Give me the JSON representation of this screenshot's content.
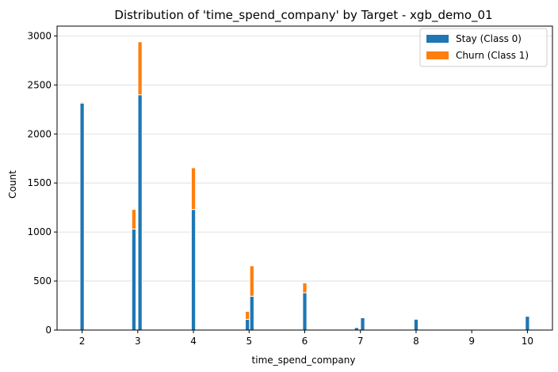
{
  "chart_data": {
    "type": "bar",
    "title": "Distribution of 'time_spend_company' by Target - xgb_demo_01",
    "xlabel": "time_spend_company",
    "ylabel": "Count",
    "xlim": [
      1.55,
      10.45
    ],
    "ylim": [
      0,
      3100
    ],
    "xticks": [
      2,
      3,
      4,
      5,
      6,
      7,
      8,
      9,
      10
    ],
    "yticks": [
      0,
      500,
      1000,
      1500,
      2000,
      2500,
      3000
    ],
    "grid": "horizontal",
    "legend_position": "top-right",
    "bar_width": 0.075,
    "colors": {
      "stay": "#1f77b4",
      "churn": "#ff7f0e",
      "edge": "#ffffff"
    },
    "series": [
      {
        "name": "Stay (Class 0)",
        "key": "stay"
      },
      {
        "name": "Churn (Class 1)",
        "key": "churn"
      }
    ],
    "bars": [
      {
        "x": 2.0,
        "stay": 2315,
        "churn": 10
      },
      {
        "x": 2.93,
        "stay": 1030,
        "churn": 200
      },
      {
        "x": 3.04,
        "stay": 2400,
        "churn": 540
      },
      {
        "x": 4.0,
        "stay": 1230,
        "churn": 425
      },
      {
        "x": 4.97,
        "stay": 110,
        "churn": 80
      },
      {
        "x": 5.05,
        "stay": 345,
        "churn": 310
      },
      {
        "x": 6.0,
        "stay": 380,
        "churn": 100
      },
      {
        "x": 6.93,
        "stay": 25,
        "churn": 0
      },
      {
        "x": 7.04,
        "stay": 125,
        "churn": 0
      },
      {
        "x": 8.0,
        "stay": 110,
        "churn": 0
      },
      {
        "x": 10.0,
        "stay": 140,
        "churn": 0
      }
    ]
  }
}
